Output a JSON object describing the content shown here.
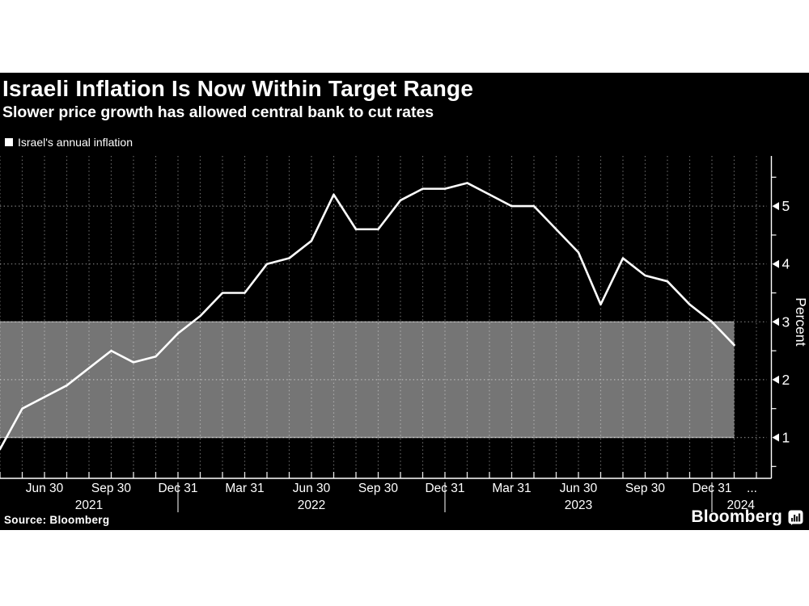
{
  "header": {
    "title": "Israeli Inflation Is Now Within Target Range",
    "subtitle": "Slower price growth has allowed central bank to cut rates"
  },
  "legend": {
    "label": "Israel's annual inflation",
    "marker_color": "#ffffff"
  },
  "footer": {
    "source": "Source: Bloomberg",
    "brand": "Bloomberg",
    "brand_icon": "bar-chart-bubble-icon"
  },
  "colors": {
    "panel_background": "#000000",
    "page_background": "#ffffff",
    "line": "#ffffff",
    "target_band": "#757575",
    "grid": "rgba(255,255,255,0.5)",
    "text": "#ffffff"
  },
  "chart_data": {
    "type": "line",
    "title": "Israeli Inflation Is Now Within Target Range",
    "subtitle": "Slower price growth has allowed central bank to cut rates",
    "ylabel": "Percent",
    "ylim": [
      0.3,
      5.9
    ],
    "grid": "dotted; vertical line each month, horizontal line each integer percent",
    "legend_position": "top-left",
    "target_band": {
      "from": 1,
      "to": 3,
      "color": "#757575"
    },
    "x": [
      "Apr 2021",
      "May 2021",
      "Jun 2021",
      "Jul 2021",
      "Aug 2021",
      "Sep 2021",
      "Oct 2021",
      "Nov 2021",
      "Dec 2021",
      "Jan 2022",
      "Feb 2022",
      "Mar 2022",
      "Apr 2022",
      "May 2022",
      "Jun 2022",
      "Jul 2022",
      "Aug 2022",
      "Sep 2022",
      "Oct 2022",
      "Nov 2022",
      "Dec 2022",
      "Jan 2023",
      "Feb 2023",
      "Mar 2023",
      "Apr 2023",
      "May 2023",
      "Jun 2023",
      "Jul 2023",
      "Aug 2023",
      "Sep 2023",
      "Oct 2023",
      "Nov 2023",
      "Dec 2023",
      "Jan 2024"
    ],
    "series": [
      {
        "name": "Israel's annual inflation",
        "color": "#ffffff",
        "values": [
          0.8,
          1.5,
          1.7,
          1.9,
          2.2,
          2.5,
          2.3,
          2.4,
          2.8,
          3.1,
          3.5,
          3.5,
          4.0,
          4.1,
          4.4,
          5.2,
          4.6,
          4.6,
          5.1,
          5.3,
          5.3,
          5.4,
          5.2,
          5.0,
          5.0,
          4.6,
          4.2,
          3.3,
          4.1,
          3.8,
          3.7,
          3.3,
          3.0,
          2.6
        ]
      }
    ],
    "y_axis": {
      "side": "right",
      "ticks": [
        1,
        2,
        3,
        4,
        5
      ],
      "minor_tick_step": 0.5,
      "label": "Percent"
    },
    "x_axis": {
      "tick_labels": [
        {
          "text": "Jun 30",
          "i": 2
        },
        {
          "text": "Sep 30",
          "i": 5
        },
        {
          "text": "Dec 31",
          "i": 8
        },
        {
          "text": "Mar 31",
          "i": 11
        },
        {
          "text": "Jun 30",
          "i": 14
        },
        {
          "text": "Sep 30",
          "i": 17
        },
        {
          "text": "Dec 31",
          "i": 20
        },
        {
          "text": "Mar 31",
          "i": 23
        },
        {
          "text": "Jun 30",
          "i": 26
        },
        {
          "text": "Sep 30",
          "i": 29
        },
        {
          "text": "Dec 31",
          "i": 32
        },
        {
          "text": "...",
          "i": 33.8
        }
      ],
      "year_labels": [
        {
          "text": "2021",
          "i": 4
        },
        {
          "text": "2022",
          "i": 14
        },
        {
          "text": "2023",
          "i": 26
        },
        {
          "text": "2024",
          "i": 33.3
        }
      ],
      "year_dividers": [
        8,
        20,
        32
      ]
    }
  }
}
